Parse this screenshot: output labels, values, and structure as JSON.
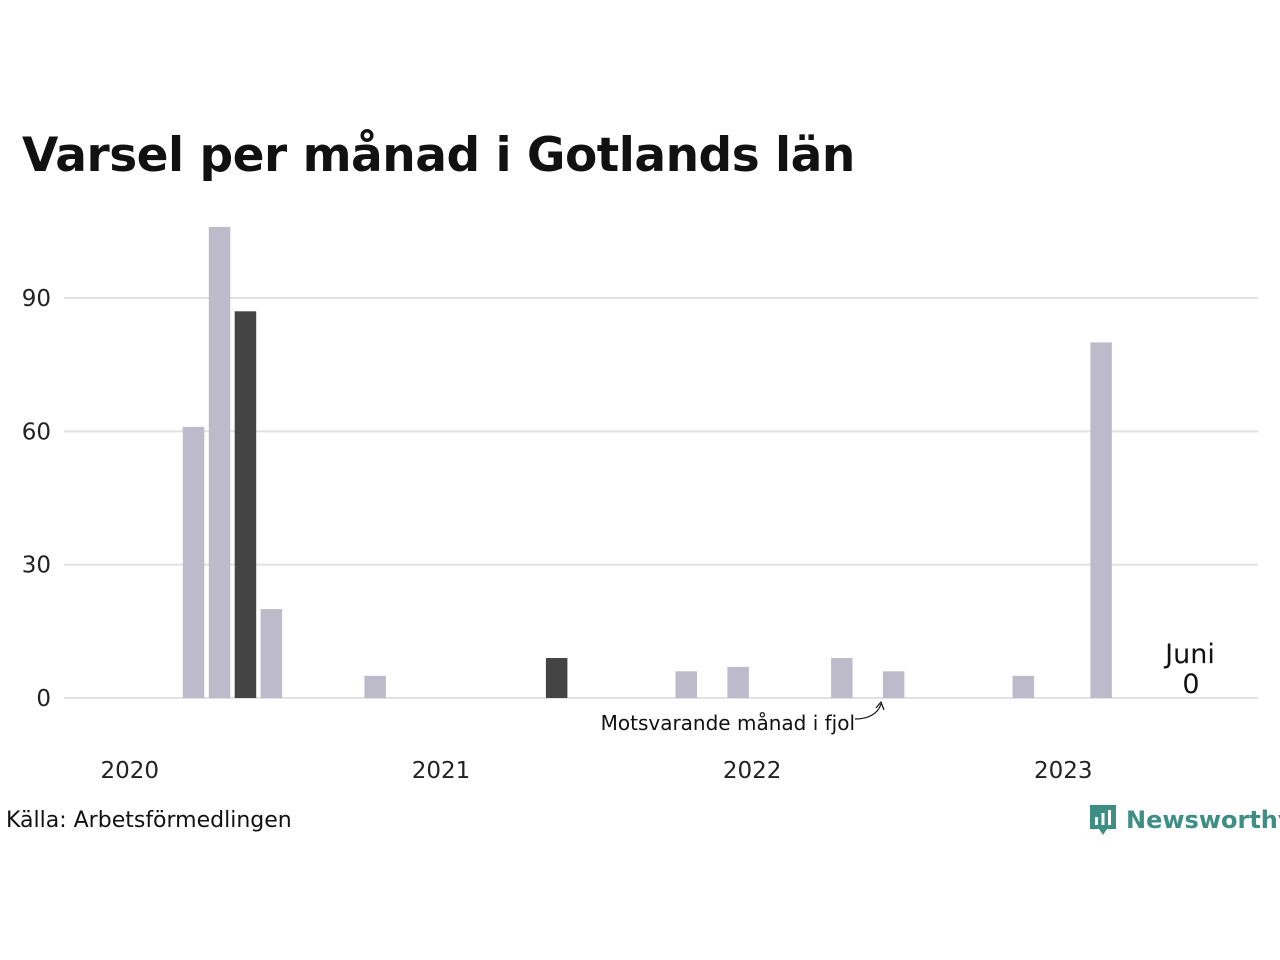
{
  "title": "Varsel per månad i Gotlands län",
  "source": "Källa: Arbetsförmedlingen",
  "brand": {
    "name": "Newsworthy",
    "icon": "newsworthy-logo-icon",
    "color": "#3e8e84"
  },
  "colors": {
    "default_bar": "#bdbbc9",
    "highlight_bar": "#444444",
    "grid": "#e2e2e6"
  },
  "annotations": {
    "last_year": "Motsvarande månad i fjol",
    "current_month": "Juni",
    "current_value": "0"
  },
  "chart_data": {
    "type": "bar",
    "title": "Varsel per månad i Gotlands län",
    "xlabel": "",
    "ylabel": "",
    "ylim": [
      0,
      110
    ],
    "yticks": [
      0,
      30,
      60,
      90
    ],
    "xticks": [
      "2020",
      "2021",
      "2022",
      "2023"
    ],
    "grid": true,
    "categories": [
      "2020-01",
      "2020-02",
      "2020-03",
      "2020-04",
      "2020-05",
      "2020-06",
      "2020-07",
      "2020-08",
      "2020-09",
      "2020-10",
      "2020-11",
      "2020-12",
      "2021-01",
      "2021-02",
      "2021-03",
      "2021-04",
      "2021-05",
      "2021-06",
      "2021-07",
      "2021-08",
      "2021-09",
      "2021-10",
      "2021-11",
      "2021-12",
      "2022-01",
      "2022-02",
      "2022-03",
      "2022-04",
      "2022-05",
      "2022-06",
      "2022-07",
      "2022-08",
      "2022-09",
      "2022-10",
      "2022-11",
      "2022-12",
      "2023-01",
      "2023-02",
      "2023-03",
      "2023-04",
      "2023-05",
      "2023-06"
    ],
    "values": [
      0,
      0,
      0,
      61,
      106,
      87,
      20,
      0,
      0,
      0,
      5,
      0,
      0,
      0,
      0,
      0,
      0,
      9,
      0,
      0,
      0,
      0,
      6,
      0,
      7,
      0,
      0,
      0,
      9,
      0,
      6,
      0,
      0,
      0,
      0,
      5,
      0,
      0,
      80,
      0,
      0,
      0
    ],
    "highlighted": [
      "2020-06",
      "2021-06",
      "2022-06",
      "2023-06"
    ]
  }
}
